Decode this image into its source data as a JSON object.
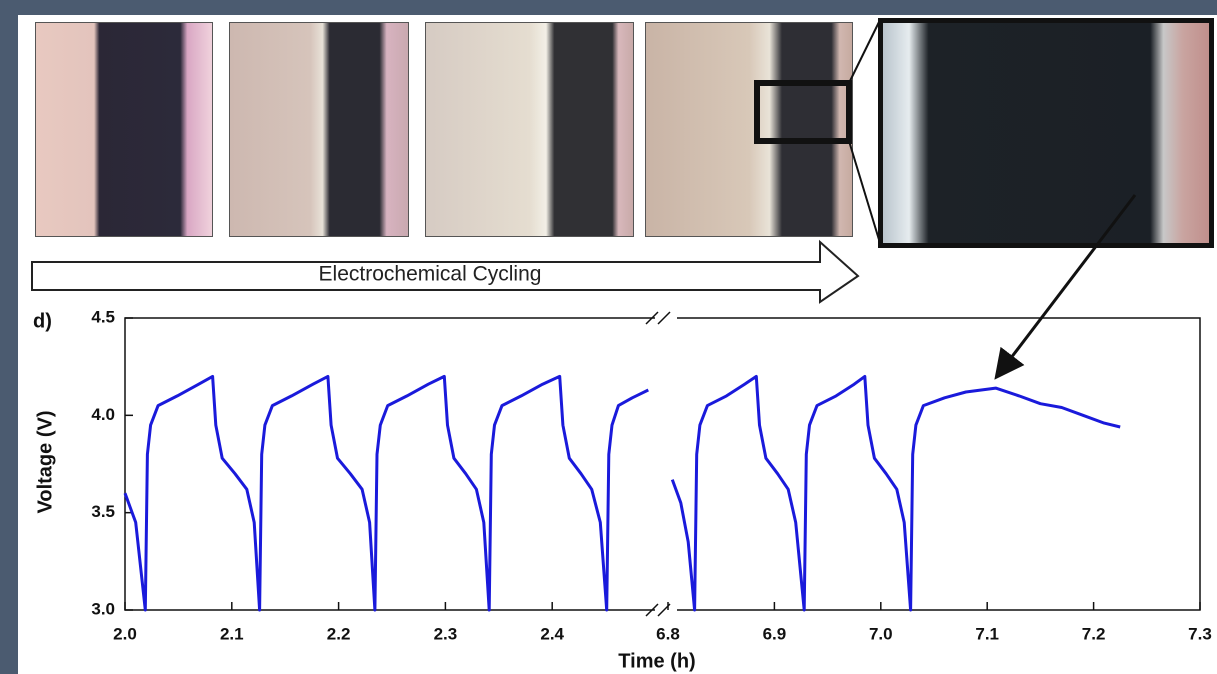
{
  "chart_data": {
    "type": "line",
    "panel_label": "d)",
    "banner": "Electrochemical Cycling",
    "x_label": "Time (h)",
    "y_label": "Voltage (V)",
    "xlim": [
      2.0,
      7.3
    ],
    "x_break": [
      2.5,
      6.8
    ],
    "ylim": [
      3.0,
      4.5
    ],
    "xticks": [
      {
        "value": 2.0,
        "label": "2.0"
      },
      2.1,
      2.2,
      2.3,
      2.4,
      6.8,
      6.9,
      {
        "value": 7.0,
        "label": "7.0"
      },
      7.1,
      7.2,
      7.3
    ],
    "yticks": [
      {
        "value": 3.0,
        "label": "3.0"
      },
      3.5,
      {
        "value": 4.0,
        "label": "4.0"
      },
      4.5
    ],
    "series": [
      {
        "color": "#1a1adb",
        "x": [
          2.0,
          2.01,
          2.019,
          2.021,
          2.024,
          2.031,
          2.049,
          2.069,
          2.082,
          2.085,
          2.091,
          2.103,
          2.114,
          2.121,
          2.126,
          2.128,
          2.131,
          2.138,
          2.156,
          2.176,
          2.19,
          2.193,
          2.199,
          2.211,
          2.222,
          2.229,
          2.234,
          2.236,
          2.239,
          2.246,
          2.264,
          2.284,
          2.299,
          2.302,
          2.308,
          2.319,
          2.329,
          2.336,
          2.341,
          2.343,
          2.346,
          2.353,
          2.371,
          2.391,
          2.407,
          2.41,
          2.416,
          2.427,
          2.437,
          2.445,
          2.451,
          2.453,
          2.456,
          2.462,
          2.475,
          2.49,
          null,
          6.804,
          6.812,
          6.819,
          6.825,
          6.827,
          6.83,
          6.837,
          6.855,
          6.872,
          6.883,
          6.886,
          6.892,
          6.903,
          6.913,
          6.92,
          6.928,
          6.93,
          6.933,
          6.94,
          6.958,
          6.975,
          6.985,
          6.988,
          6.994,
          7.005,
          7.015,
          7.022,
          7.028,
          7.03,
          7.033,
          7.04,
          7.06,
          7.08,
          7.108,
          7.13,
          7.15,
          7.17,
          7.19,
          7.21,
          7.225
        ],
        "values": [
          3.6,
          3.45,
          3.0,
          3.8,
          3.95,
          4.05,
          4.1,
          4.16,
          4.2,
          3.95,
          3.78,
          3.7,
          3.62,
          3.45,
          3.0,
          3.8,
          3.95,
          4.05,
          4.1,
          4.16,
          4.2,
          3.95,
          3.78,
          3.7,
          3.62,
          3.45,
          3.0,
          3.8,
          3.95,
          4.05,
          4.1,
          4.16,
          4.2,
          3.95,
          3.78,
          3.7,
          3.62,
          3.45,
          3.0,
          3.8,
          3.95,
          4.05,
          4.1,
          4.16,
          4.2,
          3.95,
          3.78,
          3.7,
          3.62,
          3.45,
          3.0,
          3.8,
          3.95,
          4.05,
          4.09,
          4.13,
          null,
          3.67,
          3.55,
          3.35,
          3.0,
          3.8,
          3.95,
          4.05,
          4.1,
          4.16,
          4.2,
          3.95,
          3.78,
          3.7,
          3.62,
          3.45,
          3.0,
          3.8,
          3.95,
          4.05,
          4.1,
          4.16,
          4.2,
          3.95,
          3.78,
          3.7,
          3.62,
          3.45,
          3.0,
          3.8,
          3.95,
          4.05,
          4.09,
          4.12,
          4.14,
          4.1,
          4.06,
          4.04,
          4.0,
          3.96,
          3.94
        ]
      }
    ]
  }
}
